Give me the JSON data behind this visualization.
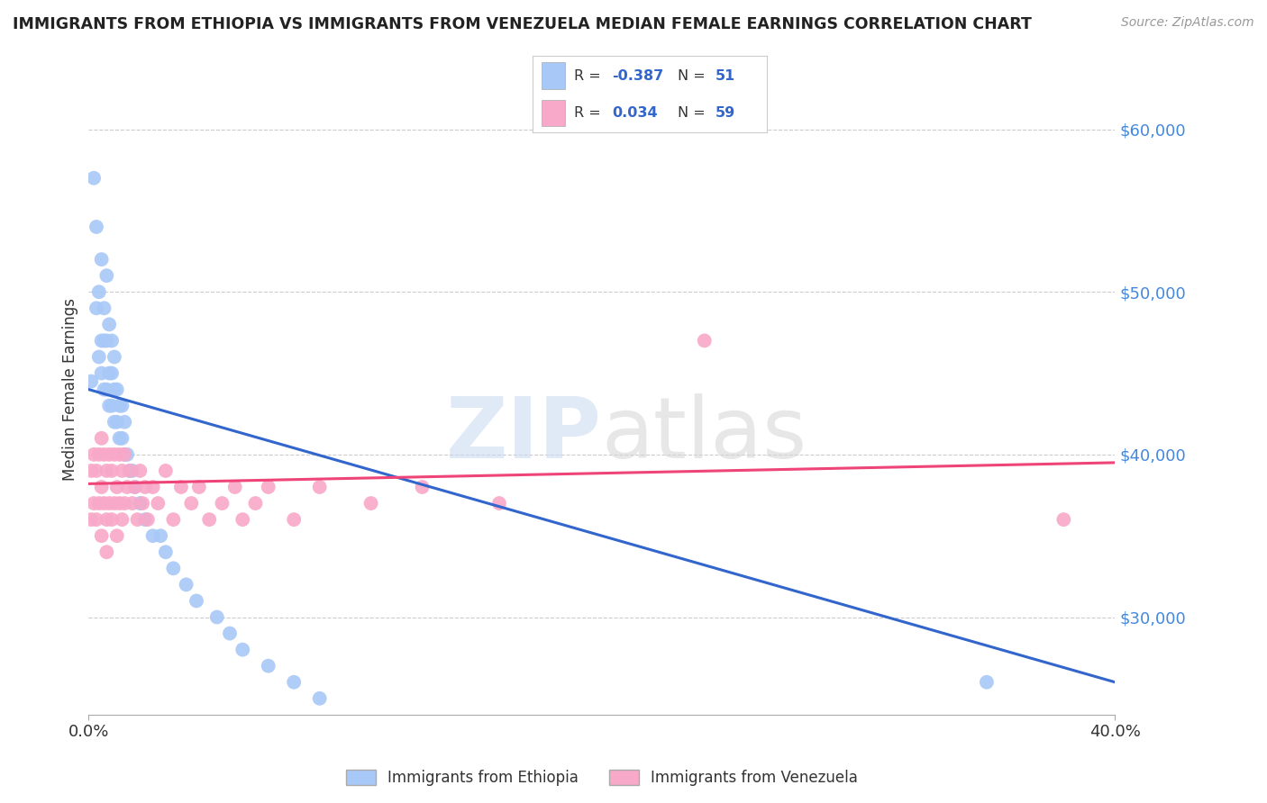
{
  "title": "IMMIGRANTS FROM ETHIOPIA VS IMMIGRANTS FROM VENEZUELA MEDIAN FEMALE EARNINGS CORRELATION CHART",
  "source": "Source: ZipAtlas.com",
  "ylabel": "Median Female Earnings",
  "yticks": [
    30000,
    40000,
    50000,
    60000
  ],
  "ytick_labels": [
    "$30,000",
    "$40,000",
    "$50,000",
    "$60,000"
  ],
  "xlim": [
    0.0,
    0.4
  ],
  "ylim": [
    24000,
    64000
  ],
  "ethiopia_R": -0.387,
  "ethiopia_N": 51,
  "venezuela_R": 0.034,
  "venezuela_N": 59,
  "ethiopia_color": "#a8c8f8",
  "venezuela_color": "#f8a8c8",
  "ethiopia_line_color": "#3366cc",
  "venezuela_line_color": "#ee4477",
  "background_color": "#ffffff",
  "eth_line_x0": 0.0,
  "eth_line_x1": 0.4,
  "eth_line_y0": 44000,
  "eth_line_y1": 26000,
  "ven_line_x0": 0.0,
  "ven_line_x1": 0.4,
  "ven_line_y0": 38200,
  "ven_line_y1": 39500,
  "ethiopia_x": [
    0.001,
    0.002,
    0.003,
    0.003,
    0.004,
    0.004,
    0.005,
    0.005,
    0.005,
    0.006,
    0.006,
    0.006,
    0.007,
    0.007,
    0.007,
    0.008,
    0.008,
    0.008,
    0.009,
    0.009,
    0.009,
    0.01,
    0.01,
    0.01,
    0.011,
    0.011,
    0.012,
    0.012,
    0.013,
    0.013,
    0.014,
    0.014,
    0.015,
    0.016,
    0.017,
    0.018,
    0.02,
    0.022,
    0.025,
    0.028,
    0.03,
    0.033,
    0.038,
    0.042,
    0.05,
    0.055,
    0.06,
    0.07,
    0.08,
    0.09,
    0.35
  ],
  "ethiopia_y": [
    44500,
    57000,
    49000,
    54000,
    50000,
    46000,
    47000,
    45000,
    52000,
    44000,
    47000,
    49000,
    44000,
    47000,
    51000,
    43000,
    45000,
    48000,
    43000,
    45000,
    47000,
    42000,
    44000,
    46000,
    42000,
    44000,
    41000,
    43000,
    41000,
    43000,
    40000,
    42000,
    40000,
    39000,
    39000,
    38000,
    37000,
    36000,
    35000,
    35000,
    34000,
    33000,
    32000,
    31000,
    30000,
    29000,
    28000,
    27000,
    26000,
    25000,
    26000
  ],
  "venezuela_x": [
    0.001,
    0.001,
    0.002,
    0.002,
    0.003,
    0.003,
    0.004,
    0.004,
    0.005,
    0.005,
    0.005,
    0.006,
    0.006,
    0.007,
    0.007,
    0.007,
    0.008,
    0.008,
    0.009,
    0.009,
    0.01,
    0.01,
    0.011,
    0.011,
    0.012,
    0.012,
    0.013,
    0.013,
    0.014,
    0.014,
    0.015,
    0.016,
    0.017,
    0.018,
    0.019,
    0.02,
    0.021,
    0.022,
    0.023,
    0.025,
    0.027,
    0.03,
    0.033,
    0.036,
    0.04,
    0.043,
    0.047,
    0.052,
    0.057,
    0.06,
    0.065,
    0.07,
    0.08,
    0.09,
    0.11,
    0.13,
    0.16,
    0.24,
    0.38
  ],
  "venezuela_y": [
    39000,
    36000,
    40000,
    37000,
    39000,
    36000,
    40000,
    37000,
    41000,
    38000,
    35000,
    40000,
    37000,
    39000,
    36000,
    34000,
    40000,
    37000,
    39000,
    36000,
    40000,
    37000,
    38000,
    35000,
    40000,
    37000,
    39000,
    36000,
    40000,
    37000,
    38000,
    39000,
    37000,
    38000,
    36000,
    39000,
    37000,
    38000,
    36000,
    38000,
    37000,
    39000,
    36000,
    38000,
    37000,
    38000,
    36000,
    37000,
    38000,
    36000,
    37000,
    38000,
    36000,
    38000,
    37000,
    38000,
    37000,
    47000,
    36000
  ],
  "legend_label_ethiopia": "Immigrants from Ethiopia",
  "legend_label_venezuela": "Immigrants from Venezuela"
}
